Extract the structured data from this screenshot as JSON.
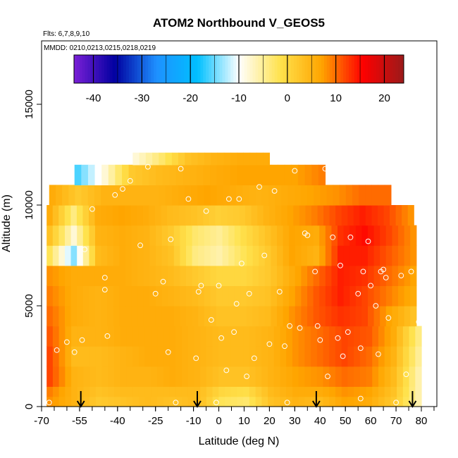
{
  "chart_data": {
    "type": "heatmap",
    "title": "ATOM2 Northbound V_GEOS5",
    "annotations": [
      "Flts: 6,7,8,9,10",
      "MMDD: 0210,0213,0215,0218,0219"
    ],
    "xlabel": "Latitude (deg N)",
    "ylabel": "Altitude (m)",
    "xlim": [
      -70,
      85
    ],
    "ylim": [
      0,
      17500
    ],
    "x_ticks": [
      "-70",
      "-55",
      "-40",
      "-25",
      "-10",
      "0",
      "10",
      "20",
      "30",
      "40",
      "50",
      "60",
      "70",
      "80"
    ],
    "y_ticks": [
      "0",
      "5000",
      "10000",
      "15000"
    ],
    "colorbar": {
      "min": -44,
      "max": 24,
      "ticks": [
        "-40",
        "-30",
        "-20",
        "-10",
        "0",
        "10",
        "20"
      ],
      "colors": [
        "#7a1fd6",
        "#0000a0",
        "#1e90ff",
        "#00c0ff",
        "#ffffff",
        "#ffe24d",
        "#ffa500",
        "#ff0000",
        "#9a1a1a"
      ]
    },
    "legend_position": "top",
    "grid": false,
    "descent_markers_lat": [
      -54.5,
      -8.5,
      38.5,
      76.5
    ],
    "rows": [
      {
        "alt_min": 0,
        "alt_max": 500,
        "lat_min": -68,
        "lat_max": 80,
        "values": [
          8,
          5,
          2,
          3,
          4,
          3,
          4,
          -2,
          -3,
          3,
          5,
          4,
          7,
          6,
          2,
          -6
        ]
      },
      {
        "alt_min": 500,
        "alt_max": 1000,
        "lat_min": -68,
        "lat_max": 80,
        "values": [
          9,
          5,
          3,
          4,
          4,
          4,
          4,
          0,
          -1,
          4,
          6,
          6,
          8,
          7,
          3,
          -6
        ]
      },
      {
        "alt_min": 1000,
        "alt_max": 2000,
        "lat_min": -68,
        "lat_max": 80,
        "values": [
          12,
          5,
          4,
          5,
          5,
          6,
          5,
          3,
          3,
          5,
          7,
          8,
          10,
          9,
          4,
          -6
        ]
      },
      {
        "alt_min": 2000,
        "alt_max": 3000,
        "lat_min": -68,
        "lat_max": 80,
        "values": [
          12,
          4,
          4,
          5,
          6,
          6,
          5,
          4,
          4,
          5,
          8,
          10,
          12,
          10,
          5,
          -5
        ]
      },
      {
        "alt_min": 3000,
        "alt_max": 4000,
        "lat_min": -68,
        "lat_max": 80,
        "values": [
          11,
          5,
          5,
          6,
          6,
          6,
          5,
          4,
          4,
          5,
          8,
          10,
          12,
          11,
          6,
          -4
        ]
      },
      {
        "alt_min": 4000,
        "alt_max": 5000,
        "lat_min": -68,
        "lat_max": 78,
        "values": [
          10,
          6,
          5,
          6,
          6,
          6,
          5,
          3,
          3,
          4,
          8,
          11,
          13,
          12,
          7,
          3
        ]
      },
      {
        "alt_min": 5000,
        "alt_max": 6000,
        "lat_min": -68,
        "lat_max": 78,
        "values": [
          9,
          6,
          5,
          6,
          6,
          5,
          4,
          2,
          2,
          3,
          7,
          11,
          14,
          12,
          9,
          6
        ]
      },
      {
        "alt_min": 6000,
        "alt_max": 7000,
        "lat_min": -68,
        "lat_max": 78,
        "values": [
          8,
          6,
          6,
          6,
          5,
          4,
          2,
          0,
          0,
          2,
          6,
          10,
          14,
          13,
          10,
          7
        ]
      },
      {
        "alt_min": 7000,
        "alt_max": 8000,
        "lat_min": -68,
        "lat_max": 78,
        "values": [
          -2,
          -14,
          4,
          6,
          5,
          3,
          -4,
          -6,
          -2,
          2,
          7,
          5,
          14,
          14,
          11,
          8
        ]
      },
      {
        "alt_min": 8000,
        "alt_max": 9000,
        "lat_min": -68,
        "lat_max": 78,
        "values": [
          3,
          -8,
          5,
          6,
          5,
          2,
          -3,
          -5,
          -1,
          3,
          7,
          6,
          13,
          15,
          12,
          8
        ]
      },
      {
        "alt_min": 9000,
        "alt_max": 10000,
        "lat_min": -68,
        "lat_max": 77,
        "values": [
          6,
          -4,
          6,
          7,
          6,
          4,
          3,
          1,
          2,
          5,
          7,
          9,
          12,
          14,
          12,
          8
        ]
      },
      {
        "alt_min": 10000,
        "alt_max": 11000,
        "lat_min": -67,
        "lat_max": 68,
        "values": [
          6,
          2,
          5,
          5,
          5,
          6,
          7,
          6,
          5,
          6,
          7,
          8,
          10,
          10
        ]
      },
      {
        "alt_min": 11000,
        "alt_max": 12000,
        "lat_min": -57,
        "lat_max": 42,
        "values": [
          -16,
          -8,
          2,
          4,
          5,
          6,
          7,
          7,
          7,
          9
        ]
      },
      {
        "alt_min": 12000,
        "alt_max": 12600,
        "lat_min": -34,
        "lat_max": 20,
        "values": [
          -8,
          -3,
          3,
          5,
          6,
          6
        ]
      }
    ],
    "observations": [
      {
        "lat": -67,
        "alt": 200
      },
      {
        "lat": -64,
        "alt": 2800
      },
      {
        "lat": -60,
        "alt": 3200
      },
      {
        "lat": -57,
        "alt": 2700
      },
      {
        "lat": -54,
        "alt": 3300
      },
      {
        "lat": -53,
        "alt": 7800
      },
      {
        "lat": -50,
        "alt": 9800
      },
      {
        "lat": -45,
        "alt": 5800
      },
      {
        "lat": -44,
        "alt": 3500
      },
      {
        "lat": -45,
        "alt": 6400
      },
      {
        "lat": -41,
        "alt": 10500
      },
      {
        "lat": -38,
        "alt": 10800
      },
      {
        "lat": -35,
        "alt": 11200
      },
      {
        "lat": -31,
        "alt": 8000
      },
      {
        "lat": -28,
        "alt": 11900
      },
      {
        "lat": -25,
        "alt": 5600
      },
      {
        "lat": -22,
        "alt": 6200
      },
      {
        "lat": -20,
        "alt": 2700
      },
      {
        "lat": -19,
        "alt": 8300
      },
      {
        "lat": -17,
        "alt": 200
      },
      {
        "lat": -15,
        "alt": 11800
      },
      {
        "lat": -12,
        "alt": 10300
      },
      {
        "lat": -9,
        "alt": 2400
      },
      {
        "lat": -8,
        "alt": 5700
      },
      {
        "lat": -7,
        "alt": 6000
      },
      {
        "lat": -5,
        "alt": 9700
      },
      {
        "lat": -3,
        "alt": 4300
      },
      {
        "lat": -1,
        "alt": 200
      },
      {
        "lat": 0,
        "alt": 6000
      },
      {
        "lat": 1,
        "alt": 3400
      },
      {
        "lat": 3,
        "alt": 1800
      },
      {
        "lat": 4,
        "alt": 10300
      },
      {
        "lat": 6,
        "alt": 3700
      },
      {
        "lat": 7,
        "alt": 5100
      },
      {
        "lat": 8,
        "alt": 10300
      },
      {
        "lat": 9,
        "alt": 7100
      },
      {
        "lat": 11,
        "alt": 1500
      },
      {
        "lat": 12,
        "alt": 5600
      },
      {
        "lat": 14,
        "alt": 2400
      },
      {
        "lat": 16,
        "alt": 10900
      },
      {
        "lat": 18,
        "alt": 7500
      },
      {
        "lat": 20,
        "alt": 3100
      },
      {
        "lat": 22,
        "alt": 10700
      },
      {
        "lat": 24,
        "alt": 5700
      },
      {
        "lat": 26,
        "alt": 3000
      },
      {
        "lat": 27,
        "alt": 200
      },
      {
        "lat": 28,
        "alt": 4000
      },
      {
        "lat": 30,
        "alt": 11700
      },
      {
        "lat": 32,
        "alt": 3900
      },
      {
        "lat": 34,
        "alt": 8600
      },
      {
        "lat": 35,
        "alt": 8500
      },
      {
        "lat": 38,
        "alt": 6700
      },
      {
        "lat": 39,
        "alt": 4000
      },
      {
        "lat": 40,
        "alt": 3300
      },
      {
        "lat": 42,
        "alt": 11800
      },
      {
        "lat": 43,
        "alt": 1500
      },
      {
        "lat": 45,
        "alt": 8400
      },
      {
        "lat": 47,
        "alt": 3400
      },
      {
        "lat": 48,
        "alt": 7000
      },
      {
        "lat": 49,
        "alt": 2500
      },
      {
        "lat": 51,
        "alt": 3700
      },
      {
        "lat": 52,
        "alt": 8400
      },
      {
        "lat": 55,
        "alt": 5600
      },
      {
        "lat": 56,
        "alt": 2900
      },
      {
        "lat": 56,
        "alt": 400
      },
      {
        "lat": 57,
        "alt": 6700
      },
      {
        "lat": 59,
        "alt": 8200
      },
      {
        "lat": 60,
        "alt": 6000
      },
      {
        "lat": 62,
        "alt": 5000
      },
      {
        "lat": 63,
        "alt": 2600
      },
      {
        "lat": 64,
        "alt": 6700
      },
      {
        "lat": 65,
        "alt": 6800
      },
      {
        "lat": 66,
        "alt": 6400
      },
      {
        "lat": 67,
        "alt": 4400
      },
      {
        "lat": 70,
        "alt": 200
      },
      {
        "lat": 72,
        "alt": 6500
      },
      {
        "lat": 74,
        "alt": 1600
      },
      {
        "lat": 76,
        "alt": 6700
      },
      {
        "lat": 79,
        "alt": 4200
      }
    ]
  }
}
